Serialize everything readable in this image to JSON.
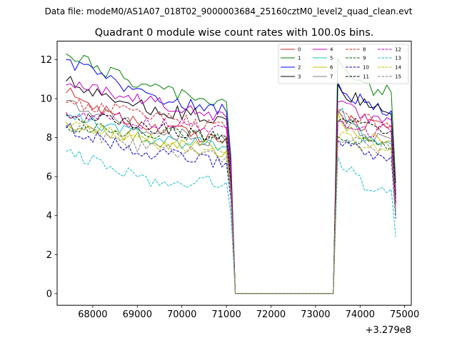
{
  "header": {
    "suptitle": "Data file: modeM0/AS1A07_018T02_9000003684_25160cztM0_level2_quad_clean.evt",
    "title": "Quadrant 0 module wise count rates with 100.0s bins."
  },
  "chart_data": {
    "type": "line",
    "title": "Quadrant 0 module wise count rates with 100.0s bins.",
    "xlabel": "",
    "ylabel": "",
    "x_offset_label": "+3.279e8",
    "x_offset": 327900000,
    "xlim": [
      67200,
      75150
    ],
    "ylim": [
      -0.6,
      12.95
    ],
    "xticks": [
      68000,
      69000,
      70000,
      71000,
      72000,
      73000,
      74000,
      75000
    ],
    "xtick_labels": [
      "68000",
      "69000",
      "70000",
      "71000",
      "72000",
      "73000",
      "74000",
      "75000"
    ],
    "yticks": [
      0,
      2,
      4,
      6,
      8,
      10,
      12
    ],
    "ytick_labels": [
      "0",
      "2",
      "4",
      "6",
      "8",
      "10",
      "12"
    ],
    "grid": false,
    "legend_position": "top-right",
    "segments": [
      {
        "start": 67400,
        "end": 71100,
        "step": 100
      },
      {
        "start": 73400,
        "end": 74800,
        "step": 100
      }
    ],
    "series": [
      {
        "name": "0",
        "color": "#d62728",
        "dash": "solid",
        "seg1": [
          10.3,
          8.5,
          7.9
        ],
        "seg2": [
          9.2,
          8.6,
          8.6
        ]
      },
      {
        "name": "1",
        "color": "#008000",
        "dash": "solid",
        "seg1": [
          12.3,
          10.5,
          9.8
        ],
        "seg2": [
          12.3,
          10.5,
          10.3
        ]
      },
      {
        "name": "2",
        "color": "#0000ff",
        "dash": "solid",
        "seg1": [
          12.0,
          10.0,
          9.3
        ],
        "seg2": [
          10.7,
          9.8,
          9.3
        ]
      },
      {
        "name": "3",
        "color": "#000000",
        "dash": "solid",
        "seg1": [
          10.9,
          9.5,
          8.9
        ],
        "seg2": [
          10.6,
          9.8,
          9.1
        ]
      },
      {
        "name": "4",
        "color": "#bf00bf",
        "dash": "solid",
        "seg1": [
          10.7,
          9.9,
          9.0
        ],
        "seg2": [
          10.3,
          9.0,
          8.9
        ]
      },
      {
        "name": "5",
        "color": "#17becf",
        "dash": "solid",
        "seg1": [
          9.1,
          8.0,
          7.5
        ],
        "seg2": [
          9.6,
          8.1,
          7.6
        ]
      },
      {
        "name": "6",
        "color": "#bfbf00",
        "dash": "solid",
        "seg1": [
          8.8,
          7.9,
          7.3
        ],
        "seg2": [
          9.1,
          8.0,
          7.8
        ]
      },
      {
        "name": "7",
        "color": "#808080",
        "dash": "solid",
        "seg1": [
          9.9,
          8.4,
          7.7
        ],
        "seg2": [
          8.9,
          8.2,
          7.9
        ]
      },
      {
        "name": "8",
        "color": "#d62728",
        "dash": "dashed",
        "seg1": [
          9.8,
          9.2,
          8.4
        ],
        "seg2": [
          9.6,
          8.9,
          8.5
        ]
      },
      {
        "name": "9",
        "color": "#006400",
        "dash": "dashed",
        "seg1": [
          8.6,
          8.3,
          8.0
        ],
        "seg2": [
          8.3,
          7.8,
          7.4
        ]
      },
      {
        "name": "10",
        "color": "#0000cd",
        "dash": "dashed",
        "seg1": [
          8.5,
          7.2,
          6.7
        ],
        "seg2": [
          8.1,
          7.1,
          7.0
        ]
      },
      {
        "name": "11",
        "color": "#000000",
        "dash": "dashed",
        "seg1": [
          9.2,
          8.6,
          8.0
        ],
        "seg2": [
          8.8,
          8.6,
          8.3
        ]
      },
      {
        "name": "12",
        "color": "#bf00bf",
        "dash": "dashed",
        "seg1": [
          9.3,
          8.7,
          8.5
        ],
        "seg2": [
          9.0,
          8.4,
          8.3
        ]
      },
      {
        "name": "13",
        "color": "#17becf",
        "dash": "dashed",
        "seg1": [
          7.3,
          5.8,
          5.7
        ],
        "seg2": [
          6.9,
          5.6,
          5.3
        ]
      },
      {
        "name": "14",
        "color": "#bfbf00",
        "dash": "dashed",
        "seg1": [
          8.8,
          7.7,
          7.2
        ],
        "seg2": [
          8.4,
          7.6,
          7.5
        ]
      },
      {
        "name": "15",
        "color": "#808080",
        "dash": "dashed",
        "seg1": [
          8.6,
          7.4,
          7.0
        ],
        "seg2": [
          8.0,
          7.6,
          7.3
        ]
      }
    ]
  }
}
